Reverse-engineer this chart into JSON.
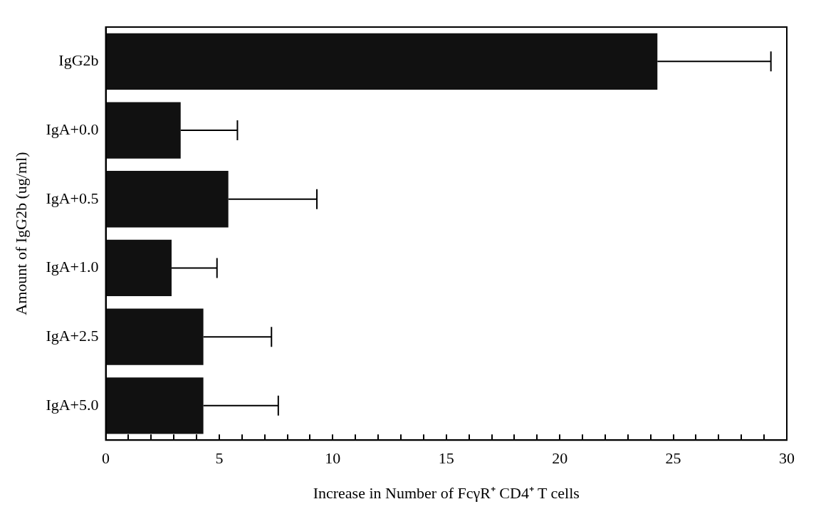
{
  "chart_data": {
    "type": "bar",
    "orientation": "horizontal",
    "xlabel": "Increase in Number of FcγR⁺ CD4⁺ T cells",
    "ylabel": "Amount of IgG2b (ug/ml)",
    "categories": [
      "IgG2b",
      "IgA+0.0",
      "IgA+0.5",
      "IgA+1.0",
      "IgA+2.5",
      "IgA+5.0"
    ],
    "values": [
      24.3,
      3.3,
      5.4,
      2.9,
      4.3,
      4.3
    ],
    "errors": [
      [
        24.3,
        29.3
      ],
      [
        3.3,
        5.8
      ],
      [
        5.4,
        9.3
      ],
      [
        2.9,
        4.9
      ],
      [
        4.3,
        7.3
      ],
      [
        4.3,
        7.6
      ]
    ],
    "color": "#111111",
    "xlim": [
      0,
      30
    ],
    "xticks": [
      0,
      {
        "value": 1,
        "label": null
      },
      {
        "value": 2,
        "label": null
      },
      {
        "value": 3,
        "label": null
      },
      {
        "value": 4,
        "label": null
      },
      5,
      {
        "value": 6,
        "label": null
      },
      {
        "value": 7,
        "label": null
      },
      {
        "value": 8,
        "label": null
      },
      {
        "value": 9,
        "label": null
      },
      10,
      {
        "value": 11,
        "label": null
      },
      {
        "value": 12,
        "label": null
      },
      {
        "value": 13,
        "label": null
      },
      {
        "value": 14,
        "label": null
      },
      15,
      {
        "value": 16,
        "label": null
      },
      {
        "value": 17,
        "label": null
      },
      {
        "value": 18,
        "label": null
      },
      {
        "value": 19,
        "label": null
      },
      20,
      {
        "value": 21,
        "label": null
      },
      {
        "value": 22,
        "label": null
      },
      {
        "value": 23,
        "label": null
      },
      {
        "value": 24,
        "label": null
      },
      25,
      {
        "value": 26,
        "label": null
      },
      {
        "value": 27,
        "label": null
      },
      {
        "value": 28,
        "label": null
      },
      {
        "value": 29,
        "label": null
      },
      30
    ],
    "grid": false,
    "legend": false
  }
}
